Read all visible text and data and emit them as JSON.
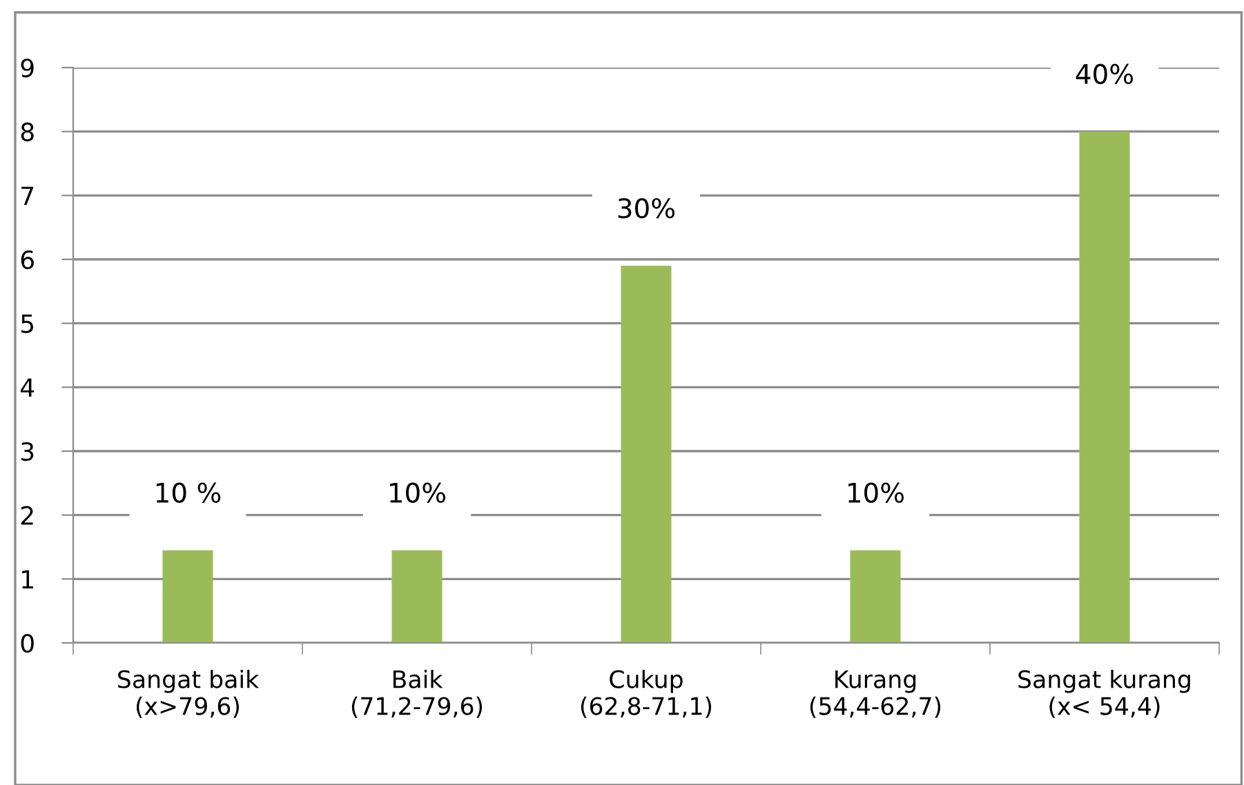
{
  "chart_data": {
    "type": "bar",
    "categories": [
      "Sangat baik\n(x>79,6)",
      "Baik\n(71,2-79,6)",
      "Cukup\n(62,8-71,1)",
      "Kurang\n(54,4-62,7)",
      "Sangat kurang\n(x< 54,4)"
    ],
    "values": [
      1.45,
      1.45,
      5.9,
      1.45,
      8.0
    ],
    "color": "#9bbb59",
    "annotations": [
      {
        "text": "10 %",
        "x": "Sangat baik\n(x>79,6)",
        "y": 1.45
      },
      {
        "text": "10%",
        "x": "Baik\n(71,2-79,6)",
        "y": 1.45
      },
      {
        "text": "30%",
        "x": "Cukup\n(62,8-71,1)",
        "y": 5.9
      },
      {
        "text": "10%",
        "x": "Kurang\n(54,4-62,7)",
        "y": 1.45
      },
      {
        "text": "40%",
        "x": "Sangat kurang\n(x< 54,4)",
        "y": 8.0
      }
    ],
    "ylim": [
      0,
      9
    ],
    "yticks": [
      0,
      1,
      2,
      3,
      4,
      5,
      6,
      7,
      8,
      9
    ],
    "grid": "y"
  }
}
